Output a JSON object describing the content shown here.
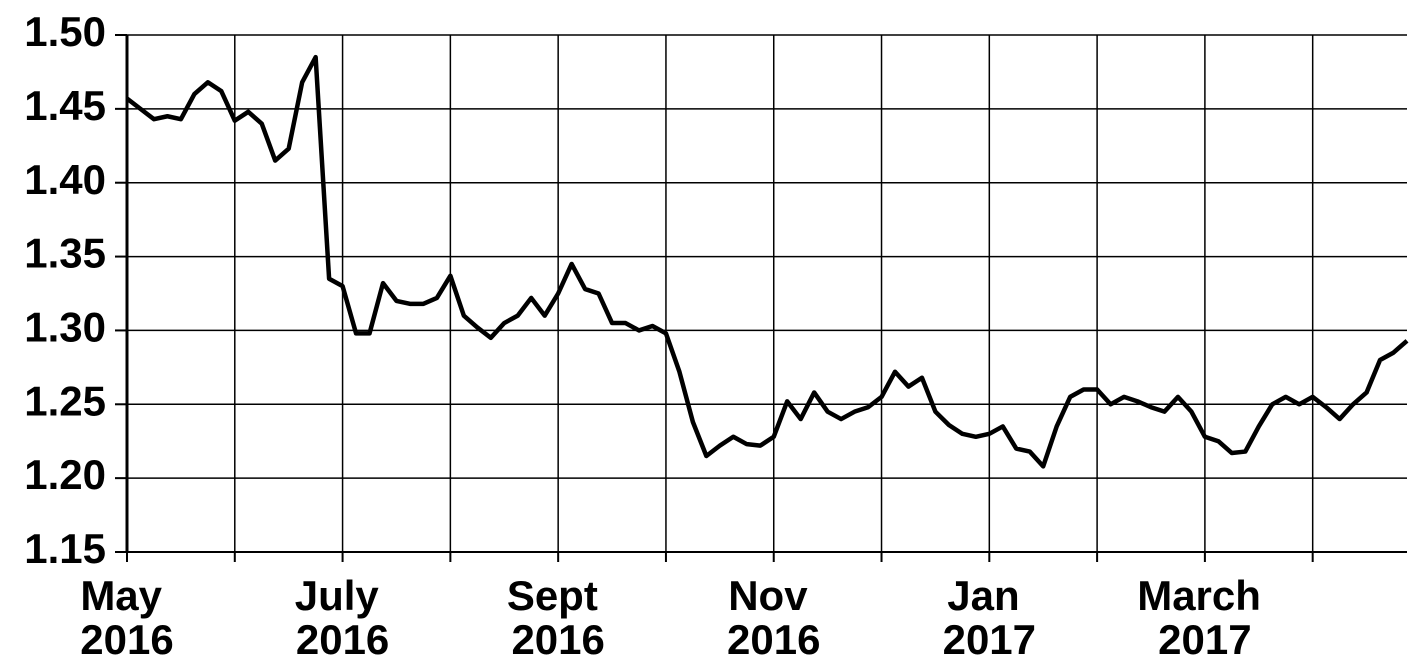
{
  "chart_data": {
    "type": "line",
    "categories": [
      "May 2016",
      null,
      null,
      null,
      null,
      null,
      null,
      null,
      null,
      null,
      null,
      null,
      null,
      null,
      null,
      null,
      "July 2016",
      null,
      null,
      null,
      null,
      null,
      null,
      null,
      null,
      null,
      null,
      null,
      null,
      null,
      null,
      null,
      "Sept 2016",
      null,
      null,
      null,
      null,
      null,
      null,
      null,
      null,
      null,
      null,
      null,
      null,
      null,
      null,
      null,
      "Nov 2016",
      null,
      null,
      null,
      null,
      null,
      null,
      null,
      null,
      null,
      null,
      null,
      null,
      null,
      null,
      null,
      "Jan 2017",
      null,
      null,
      null,
      null,
      null,
      null,
      null,
      null,
      null,
      null,
      null,
      null,
      null,
      null,
      null,
      "March 2017",
      null,
      null,
      null,
      null,
      null,
      null,
      null,
      null,
      null,
      null,
      null,
      null,
      null,
      null,
      null
    ],
    "values": [
      1.457,
      1.45,
      1.443,
      1.445,
      1.443,
      1.46,
      1.468,
      1.462,
      1.442,
      1.448,
      1.44,
      1.415,
      1.423,
      1.468,
      1.485,
      1.335,
      1.33,
      1.298,
      1.298,
      1.332,
      1.32,
      1.318,
      1.318,
      1.322,
      1.337,
      1.31,
      1.302,
      1.295,
      1.305,
      1.31,
      1.322,
      1.31,
      1.325,
      1.345,
      1.328,
      1.325,
      1.305,
      1.305,
      1.3,
      1.303,
      1.298,
      1.272,
      1.238,
      1.215,
      1.222,
      1.228,
      1.223,
      1.222,
      1.228,
      1.252,
      1.24,
      1.258,
      1.245,
      1.24,
      1.245,
      1.248,
      1.255,
      1.272,
      1.262,
      1.268,
      1.245,
      1.236,
      1.23,
      1.228,
      1.23,
      1.235,
      1.22,
      1.218,
      1.208,
      1.235,
      1.255,
      1.26,
      1.26,
      1.25,
      1.255,
      1.252,
      1.248,
      1.245,
      1.255,
      1.245,
      1.228,
      1.225,
      1.217,
      1.218,
      1.235,
      1.25,
      1.255,
      1.25,
      1.255,
      1.248,
      1.24,
      1.25,
      1.258,
      1.28,
      1.285,
      1.293
    ],
    "color": "#000000",
    "ylim": [
      1.15,
      1.5
    ],
    "yticks": [
      1.15,
      {
        "value": 1.2,
        "label": "1.20"
      },
      1.25,
      {
        "value": 1.3,
        "label": "1.30"
      },
      1.35,
      {
        "value": 1.4,
        "label": "1.40"
      },
      1.45,
      {
        "value": 1.5,
        "label": "1.50"
      }
    ],
    "grid": true
  }
}
